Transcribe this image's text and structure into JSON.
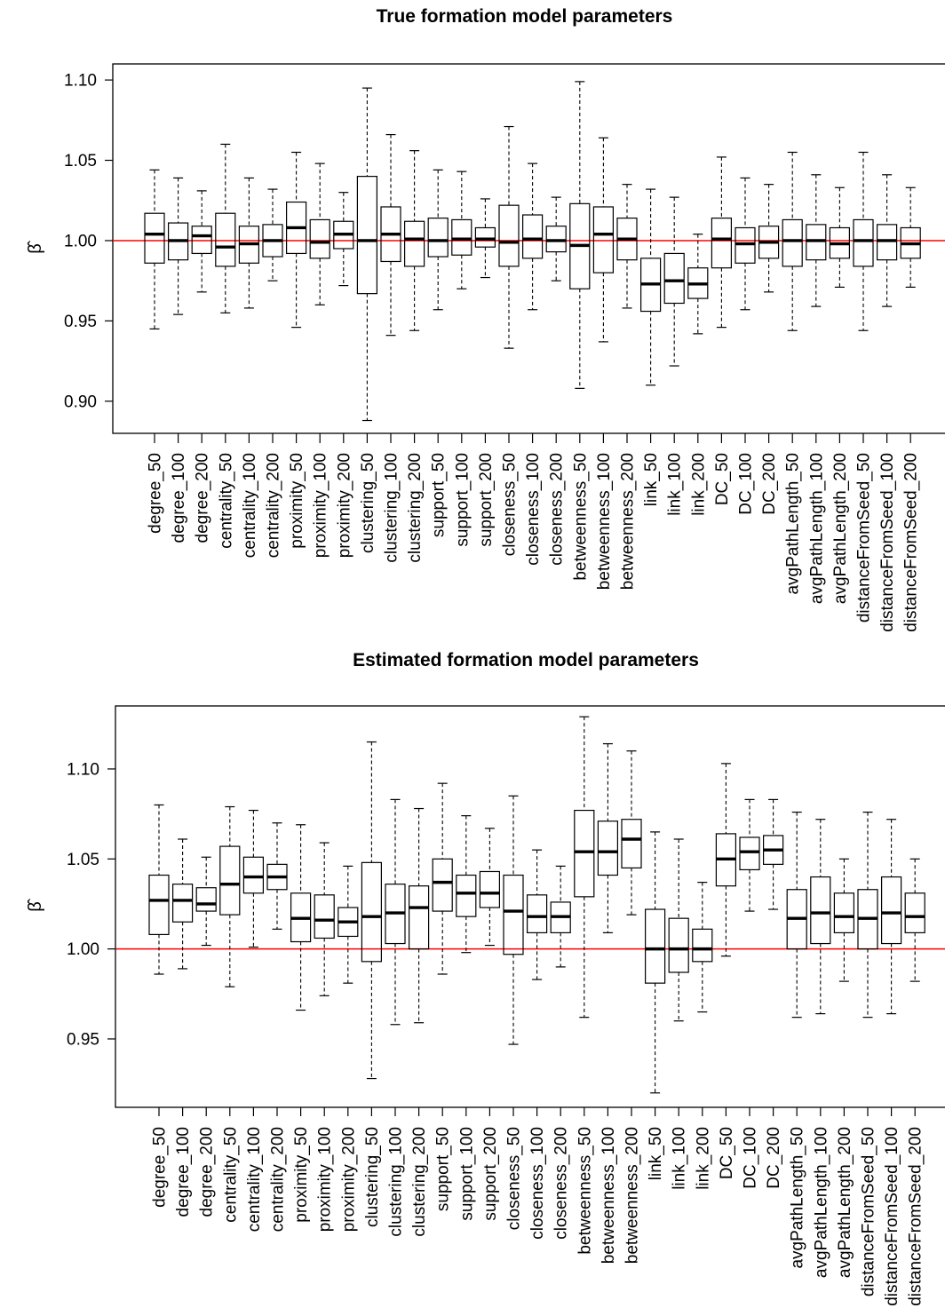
{
  "chart_data": [
    {
      "type": "boxplot",
      "title": "True formation model parameters",
      "ylabel": "β̂",
      "ylim": [
        0.88,
        1.11
      ],
      "yticks": [
        "0.90",
        "0.95",
        "1.00",
        "1.05",
        "1.10"
      ],
      "reference_line": {
        "y": 1.0,
        "color": "#ff0000"
      },
      "categories": [
        "degree_50",
        "degree_100",
        "degree_200",
        "centrality_50",
        "centrality_100",
        "centrality_200",
        "proximity_50",
        "proximity_100",
        "proximity_200",
        "clustering_50",
        "clustering_100",
        "clustering_200",
        "support_50",
        "support_100",
        "support_200",
        "closeness_50",
        "closeness_100",
        "closeness_200",
        "betweenness_50",
        "betweenness_100",
        "betweenness_200",
        "link_50",
        "link_100",
        "link_200",
        "DC_50",
        "DC_100",
        "DC_200",
        "avgPathLength_50",
        "avgPathLength_100",
        "avgPathLength_200",
        "distanceFromSeed_50",
        "distanceFromSeed_100",
        "distanceFromSeed_200"
      ],
      "boxes": [
        [
          0.945,
          0.986,
          1.004,
          1.017,
          1.044
        ],
        [
          0.954,
          0.988,
          1.0,
          1.011,
          1.039
        ],
        [
          0.968,
          0.992,
          1.003,
          1.009,
          1.031
        ],
        [
          0.955,
          0.984,
          0.996,
          1.017,
          1.06
        ],
        [
          0.958,
          0.986,
          0.998,
          1.009,
          1.039
        ],
        [
          0.975,
          0.99,
          1.0,
          1.01,
          1.032
        ],
        [
          0.946,
          0.992,
          1.008,
          1.024,
          1.055
        ],
        [
          0.96,
          0.989,
          0.999,
          1.013,
          1.048
        ],
        [
          0.972,
          0.995,
          1.004,
          1.012,
          1.03
        ],
        [
          0.888,
          0.967,
          1.0,
          1.04,
          1.095
        ],
        [
          0.941,
          0.987,
          1.004,
          1.021,
          1.066
        ],
        [
          0.944,
          0.984,
          1.001,
          1.012,
          1.056
        ],
        [
          0.957,
          0.99,
          1.0,
          1.014,
          1.044
        ],
        [
          0.97,
          0.991,
          1.001,
          1.013,
          1.043
        ],
        [
          0.977,
          0.996,
          1.001,
          1.008,
          1.026
        ],
        [
          0.933,
          0.984,
          0.999,
          1.022,
          1.071
        ],
        [
          0.957,
          0.989,
          1.001,
          1.016,
          1.048
        ],
        [
          0.975,
          0.993,
          1.0,
          1.009,
          1.027
        ],
        [
          0.908,
          0.97,
          0.997,
          1.023,
          1.099
        ],
        [
          0.937,
          0.98,
          1.004,
          1.021,
          1.064
        ],
        [
          0.958,
          0.988,
          1.001,
          1.014,
          1.035
        ],
        [
          0.91,
          0.956,
          0.973,
          0.989,
          1.032
        ],
        [
          0.922,
          0.961,
          0.975,
          0.992,
          1.027
        ],
        [
          0.942,
          0.964,
          0.973,
          0.983,
          1.004
        ],
        [
          0.946,
          0.983,
          1.001,
          1.014,
          1.052
        ],
        [
          0.957,
          0.986,
          0.998,
          1.008,
          1.039
        ],
        [
          0.968,
          0.989,
          0.999,
          1.009,
          1.035
        ],
        [
          0.944,
          0.984,
          1.0,
          1.013,
          1.055
        ],
        [
          0.959,
          0.988,
          1.0,
          1.01,
          1.041
        ],
        [
          0.971,
          0.989,
          0.998,
          1.008,
          1.033
        ],
        [
          0.944,
          0.984,
          1.0,
          1.013,
          1.055
        ],
        [
          0.959,
          0.988,
          1.0,
          1.01,
          1.041
        ],
        [
          0.971,
          0.989,
          0.998,
          1.008,
          1.033
        ]
      ]
    },
    {
      "type": "boxplot",
      "title": "Estimated formation model parameters",
      "ylabel": "β̂",
      "ylim": [
        0.912,
        1.135
      ],
      "yticks": [
        "0.95",
        "1.00",
        "1.05",
        "1.10"
      ],
      "reference_line": {
        "y": 1.0,
        "color": "#ff0000"
      },
      "categories": [
        "degree_50",
        "degree_100",
        "degree_200",
        "centrality_50",
        "centrality_100",
        "centrality_200",
        "proximity_50",
        "proximity_100",
        "proximity_200",
        "clustering_50",
        "clustering_100",
        "clustering_200",
        "support_50",
        "support_100",
        "support_200",
        "closeness_50",
        "closeness_100",
        "closeness_200",
        "betweenness_50",
        "betweenness_100",
        "betweenness_200",
        "link_50",
        "link_100",
        "link_200",
        "DC_50",
        "DC_100",
        "DC_200",
        "avgPathLength_50",
        "avgPathLength_100",
        "avgPathLength_200",
        "distanceFromSeed_50",
        "distanceFromSeed_100",
        "distanceFromSeed_200"
      ],
      "boxes": [
        [
          0.986,
          1.008,
          1.027,
          1.041,
          1.08
        ],
        [
          0.989,
          1.015,
          1.027,
          1.036,
          1.061
        ],
        [
          1.002,
          1.021,
          1.025,
          1.034,
          1.051
        ],
        [
          0.979,
          1.019,
          1.036,
          1.057,
          1.079
        ],
        [
          1.001,
          1.031,
          1.04,
          1.051,
          1.077
        ],
        [
          1.011,
          1.033,
          1.04,
          1.047,
          1.07
        ],
        [
          0.966,
          1.004,
          1.017,
          1.031,
          1.069
        ],
        [
          0.974,
          1.006,
          1.016,
          1.03,
          1.059
        ],
        [
          0.981,
          1.007,
          1.015,
          1.023,
          1.046
        ],
        [
          0.928,
          0.993,
          1.018,
          1.048,
          1.115
        ],
        [
          0.958,
          1.003,
          1.02,
          1.036,
          1.083
        ],
        [
          0.959,
          1.0,
          1.023,
          1.035,
          1.078
        ],
        [
          0.986,
          1.021,
          1.037,
          1.05,
          1.092
        ],
        [
          0.998,
          1.018,
          1.031,
          1.041,
          1.074
        ],
        [
          1.002,
          1.023,
          1.031,
          1.043,
          1.067
        ],
        [
          0.947,
          0.997,
          1.021,
          1.041,
          1.085
        ],
        [
          0.983,
          1.009,
          1.018,
          1.03,
          1.055
        ],
        [
          0.99,
          1.009,
          1.018,
          1.026,
          1.046
        ],
        [
          0.962,
          1.029,
          1.054,
          1.077,
          1.129
        ],
        [
          1.009,
          1.041,
          1.054,
          1.071,
          1.114
        ],
        [
          1.019,
          1.045,
          1.061,
          1.072,
          1.11
        ],
        [
          0.92,
          0.981,
          1.0,
          1.022,
          1.065
        ],
        [
          0.96,
          0.987,
          1.0,
          1.017,
          1.061
        ],
        [
          0.965,
          0.993,
          1.0,
          1.011,
          1.037
        ],
        [
          0.996,
          1.035,
          1.05,
          1.064,
          1.103
        ],
        [
          1.021,
          1.044,
          1.054,
          1.062,
          1.083
        ],
        [
          1.022,
          1.047,
          1.055,
          1.063,
          1.083
        ],
        [
          0.962,
          1.0,
          1.017,
          1.033,
          1.076
        ],
        [
          0.964,
          1.003,
          1.02,
          1.04,
          1.072
        ],
        [
          0.982,
          1.009,
          1.018,
          1.031,
          1.05
        ],
        [
          0.962,
          1.0,
          1.017,
          1.033,
          1.076
        ],
        [
          0.964,
          1.003,
          1.02,
          1.04,
          1.072
        ],
        [
          0.982,
          1.009,
          1.018,
          1.031,
          1.05
        ]
      ]
    }
  ]
}
